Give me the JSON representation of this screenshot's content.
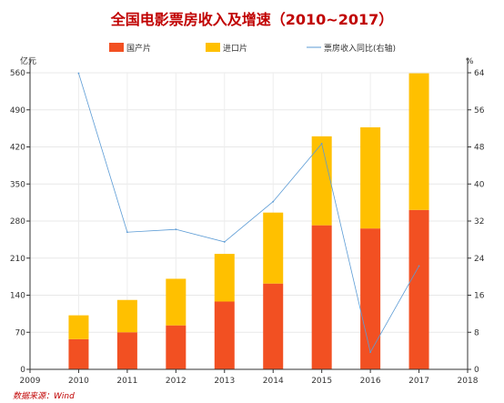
{
  "chart_data": {
    "type": "bar",
    "title": "全国电影票房收入及增速（2010~2017）",
    "left_unit": "亿元",
    "right_unit": "%",
    "categories": [
      "2010",
      "2011",
      "2012",
      "2013",
      "2014",
      "2015",
      "2016",
      "2017"
    ],
    "x_ticks": [
      "2009",
      "2010",
      "2011",
      "2012",
      "2013",
      "2014",
      "2015",
      "2016",
      "2017",
      "2018"
    ],
    "stacked": true,
    "series": [
      {
        "name": "国产片",
        "type": "bar",
        "axis": "left",
        "color": "#f25022",
        "values": [
          57,
          70,
          83,
          128,
          162,
          272,
          266,
          301
        ]
      },
      {
        "name": "进口片",
        "type": "bar",
        "axis": "left",
        "color": "#ffc000",
        "values": [
          45,
          61,
          88,
          90,
          134,
          168,
          191,
          258
        ]
      },
      {
        "name": "票房收入同比(右轴)",
        "type": "line",
        "axis": "right",
        "color": "#5b9bd5",
        "values": [
          63.9,
          29.6,
          30.2,
          27.5,
          36.2,
          48.7,
          3.7,
          22.3
        ]
      }
    ],
    "left_axis": {
      "min": 0,
      "max": 560,
      "ticks": [
        0,
        70,
        140,
        210,
        280,
        350,
        420,
        490,
        560
      ]
    },
    "right_axis": {
      "min": 0,
      "max": 64,
      "ticks": [
        0,
        8,
        16,
        24,
        32,
        40,
        48,
        56,
        64
      ]
    },
    "grid": true,
    "legend_position": "top",
    "source": "数据来源：Wind"
  }
}
